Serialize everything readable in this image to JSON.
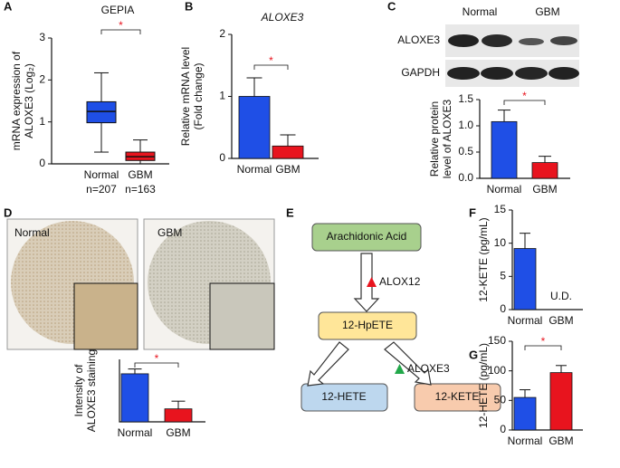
{
  "panels": [
    "A",
    "B",
    "C",
    "D",
    "E",
    "F",
    "G"
  ],
  "blot": {
    "groups": [
      "Normal",
      "GBM"
    ],
    "rows": [
      "ALOXE3",
      "GAPDH"
    ]
  },
  "images": [
    "Normal",
    "GBM"
  ],
  "diagram": {
    "nodes": [
      "Arachidonic Acid",
      "12-HpETE",
      "12-HETE",
      "12-KETE"
    ],
    "enzymes": [
      "ALOX12",
      "ALOXE3"
    ]
  },
  "chart_data": [
    {
      "type": "box",
      "title": "GEPIA",
      "ylabel": [
        "mRNA expression of",
        "ALOXE3 (Log₂)"
      ],
      "categories": [
        "Normal",
        "GBM"
      ],
      "sublabels": [
        "n=207",
        "n=163"
      ],
      "colors": [
        "#1f4fe6",
        "#e8141e"
      ],
      "boxes": [
        {
          "whislo": 0.28,
          "q1": 0.98,
          "med": 1.25,
          "q3": 1.48,
          "whishi": 2.17
        },
        {
          "whislo": 0,
          "q1": 0.08,
          "med": 0.17,
          "q3": 0.28,
          "whishi": 0.57
        }
      ],
      "ylim": [
        0,
        3
      ],
      "yticks": [
        0,
        1,
        2,
        3
      ],
      "significance": "*"
    },
    {
      "type": "bar",
      "title": "ALOXE3",
      "ylabel": [
        "Relative mRNA level",
        "(Fold change)"
      ],
      "categories": [
        "Normal",
        "GBM"
      ],
      "colors": [
        "#1f4fe6",
        "#e8141e"
      ],
      "values": [
        1.0,
        0.2
      ],
      "errors": [
        0.3,
        0.18
      ],
      "ylim": [
        0,
        2
      ],
      "yticks": [
        0,
        1,
        2
      ],
      "significance": "*"
    },
    {
      "type": "bar",
      "ylabel": [
        "Relative protein",
        "level of ALOXE3"
      ],
      "categories": [
        "Normal",
        "GBM"
      ],
      "colors": [
        "#1f4fe6",
        "#e8141e"
      ],
      "values": [
        1.08,
        0.3
      ],
      "errors": [
        0.22,
        0.12
      ],
      "ylim": [
        0,
        1.5
      ],
      "yticks": [
        {
          "value": 0,
          "label": "0.0"
        },
        {
          "value": 0.5,
          "label": "0.5"
        },
        {
          "value": 1,
          "label": "1.0"
        },
        {
          "value": 1.5,
          "label": "1.5"
        }
      ],
      "significance": "*"
    },
    {
      "type": "bar",
      "ylabel": [
        "Intensity of",
        "ALOXE3 staining"
      ],
      "categories": [
        "Normal",
        "GBM"
      ],
      "colors": [
        "#1f4fe6",
        "#e8141e"
      ],
      "values": [
        1.0,
        0.27
      ],
      "errors": [
        0.1,
        0.16
      ],
      "ylim": [
        0,
        1.3
      ],
      "significance": "*"
    },
    {
      "type": "bar",
      "ylabel": [
        "12-KETE (pg/mL)"
      ],
      "categories": [
        "Normal",
        "GBM"
      ],
      "colors": [
        "#1f4fe6",
        "#e8141e"
      ],
      "values": [
        9.2,
        null
      ],
      "value_labels": [
        null,
        "U.D."
      ],
      "errors": [
        2.3,
        null
      ],
      "ylim": [
        0,
        15
      ],
      "yticks": [
        0,
        5,
        10,
        15
      ]
    },
    {
      "type": "bar",
      "ylabel": [
        "12-HETE (pg/mL)"
      ],
      "categories": [
        "Normal",
        "GBM"
      ],
      "colors": [
        "#1f4fe6",
        "#e8141e"
      ],
      "values": [
        55,
        97
      ],
      "errors": [
        13,
        12
      ],
      "ylim": [
        0,
        150
      ],
      "yticks": [
        0,
        50,
        100,
        150
      ],
      "significance": "*"
    }
  ]
}
